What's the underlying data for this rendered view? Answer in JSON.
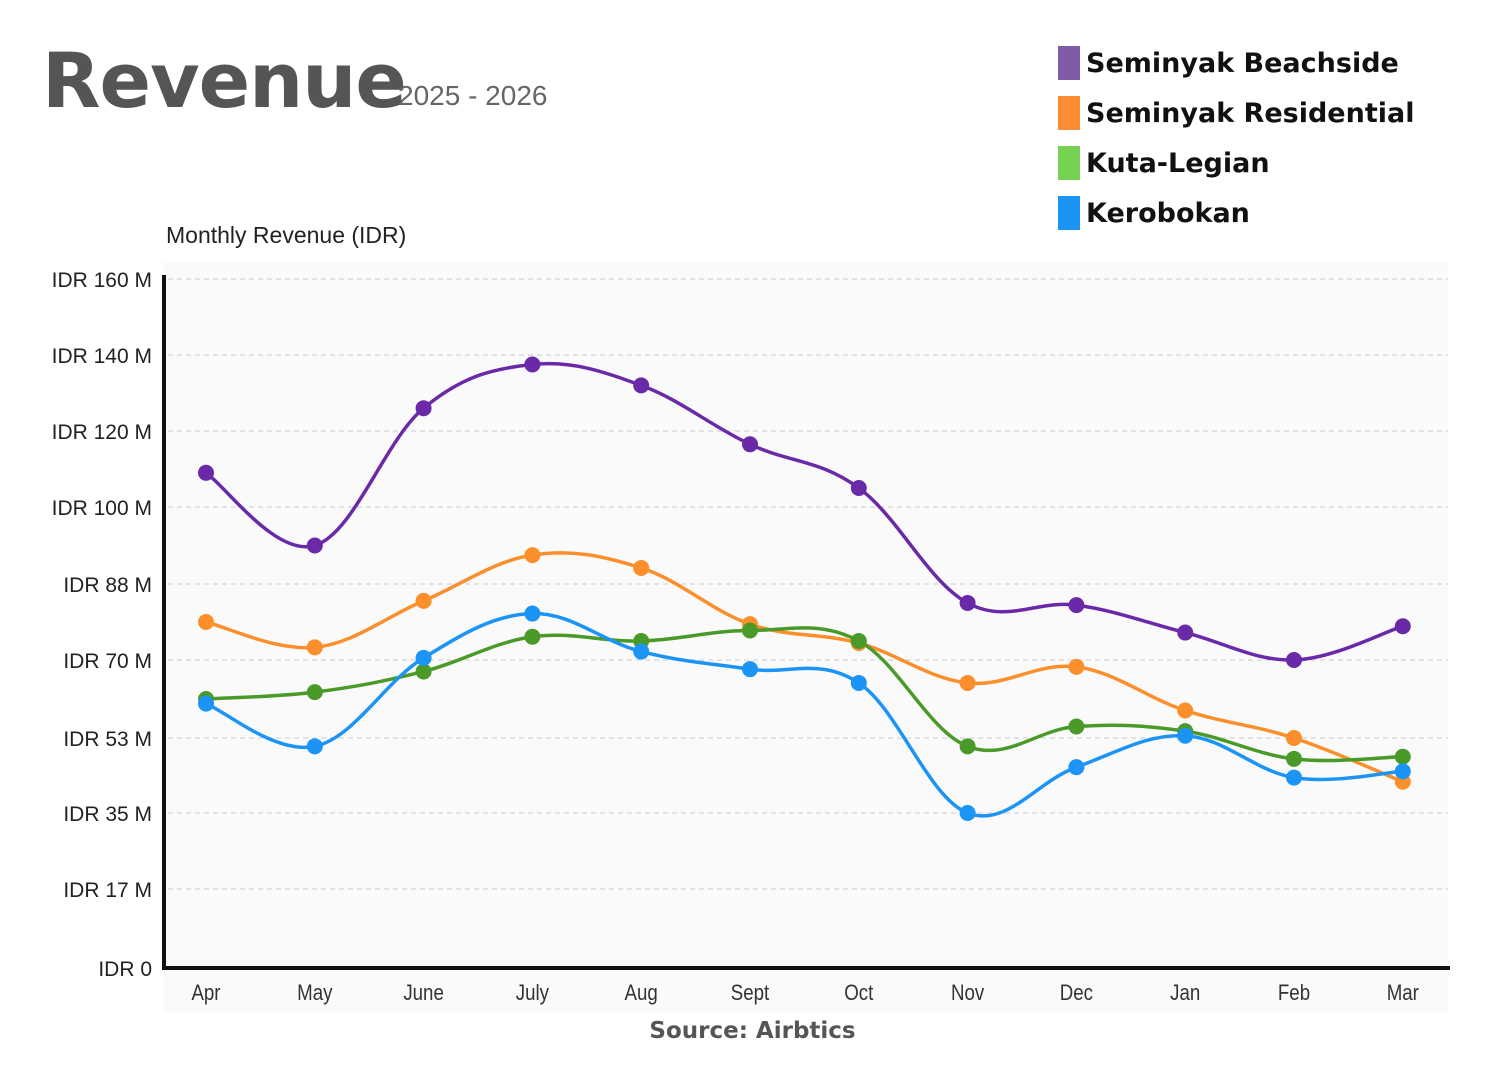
{
  "header": {
    "title": "Revenue",
    "subtitle": "2025 - 2026"
  },
  "legend": [
    {
      "label": "Seminyak Beachside",
      "color": "#7e5ca8"
    },
    {
      "label": "Seminyak Residential",
      "color": "#fb8c33"
    },
    {
      "label": "Kuta-Legian",
      "color": "#74d151"
    },
    {
      "label": "Kerobokan",
      "color": "#1b94f6"
    }
  ],
  "footer": {
    "source": "Source: Airbtics"
  },
  "chart_data": {
    "type": "line",
    "ylabel": "Monthly Revenue (IDR)",
    "xlabel": "",
    "categories": [
      "Apr",
      "May",
      "June",
      "July",
      "Aug",
      "Sept",
      "Oct",
      "Nov",
      "Dec",
      "Jan",
      "Feb",
      "Mar"
    ],
    "y_ticks": [
      0,
      17,
      35,
      53,
      70,
      88,
      100,
      120,
      140,
      160
    ],
    "y_tick_labels": [
      "IDR 0",
      "IDR 17 M",
      "IDR 35 M",
      "IDR 53 M",
      "IDR 70 M",
      "IDR 88 M",
      "IDR 100 M",
      "IDR 120 M",
      "IDR 140 M",
      "IDR 160 M"
    ],
    "grid": true,
    "legend_position": "top-right",
    "series": [
      {
        "name": "Seminyak Beachside",
        "color": "#6a2aa8",
        "values": [
          109,
          94,
          126,
          137.5,
          132,
          116.5,
          105,
          83.5,
          83,
          76.5,
          70,
          78
        ]
      },
      {
        "name": "Seminyak Residential",
        "color": "#fb8f2c",
        "values": [
          79,
          73,
          84,
          92.5,
          90.5,
          78.5,
          74,
          65,
          68.5,
          59,
          53,
          42.5
        ]
      },
      {
        "name": "Kuta-Legian",
        "color": "#4a9a2a",
        "values": [
          61.5,
          63,
          67.5,
          75.5,
          74.5,
          77,
          74.5,
          51,
          55.5,
          54.5,
          48,
          48.5
        ]
      },
      {
        "name": "Kerobokan",
        "color": "#1b94f6",
        "values": [
          60.5,
          51,
          70.5,
          81,
          72,
          68,
          65,
          35,
          46,
          53.5,
          43.5,
          45
        ]
      }
    ]
  }
}
